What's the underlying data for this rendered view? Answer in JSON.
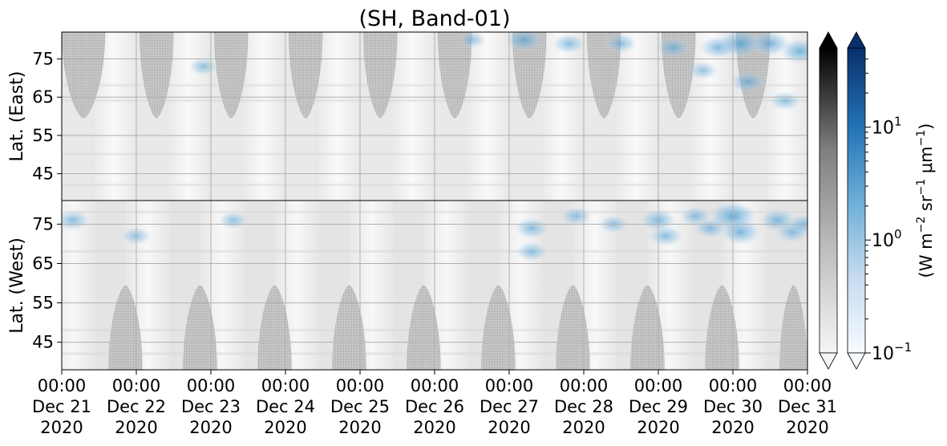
{
  "chart_data": {
    "type": "heatmap",
    "title": "(SH, Band-01)",
    "x": {
      "ticks": [
        {
          "time": "00:00",
          "date": "Dec 21",
          "year": "2020"
        },
        {
          "time": "00:00",
          "date": "Dec 22",
          "year": "2020"
        },
        {
          "time": "00:00",
          "date": "Dec 23",
          "year": "2020"
        },
        {
          "time": "00:00",
          "date": "Dec 24",
          "year": "2020"
        },
        {
          "time": "00:00",
          "date": "Dec 25",
          "year": "2020"
        },
        {
          "time": "00:00",
          "date": "Dec 26",
          "year": "2020"
        },
        {
          "time": "00:00",
          "date": "Dec 27",
          "year": "2020"
        },
        {
          "time": "00:00",
          "date": "Dec 28",
          "year": "2020"
        },
        {
          "time": "00:00",
          "date": "Dec 29",
          "year": "2020"
        },
        {
          "time": "00:00",
          "date": "Dec 30",
          "year": "2020"
        },
        {
          "time": "00:00",
          "date": "Dec 31",
          "year": "2020"
        }
      ],
      "range": [
        "2020-12-21 00:00",
        "2020-12-31 00:00"
      ],
      "grid": true
    },
    "panels": [
      {
        "name": "east",
        "ylabel": "Lat. (East)",
        "ylim": [
          38,
          82
        ],
        "yticks": [
          45,
          55,
          65,
          75
        ],
        "grid": true,
        "gray_patches": [
          {
            "start": "2020-12-21 00:00",
            "end": "2020-12-21 14:00",
            "edge_lat": 59.5
          },
          {
            "start": "2020-12-22 01:00",
            "end": "2020-12-22 12:00",
            "edge_lat": 59.5
          },
          {
            "start": "2020-12-23 01:00",
            "end": "2020-12-23 12:00",
            "edge_lat": 59.5
          },
          {
            "start": "2020-12-24 01:00",
            "end": "2020-12-24 12:00",
            "edge_lat": 59.5
          },
          {
            "start": "2020-12-25 01:00",
            "end": "2020-12-25 12:00",
            "edge_lat": 59.5
          },
          {
            "start": "2020-12-26 01:00",
            "end": "2020-12-26 12:00",
            "edge_lat": 59.5
          },
          {
            "start": "2020-12-27 01:00",
            "end": "2020-12-27 12:00",
            "edge_lat": 59.5
          },
          {
            "start": "2020-12-28 01:00",
            "end": "2020-12-28 12:00",
            "edge_lat": 59.5
          },
          {
            "start": "2020-12-29 01:00",
            "end": "2020-12-29 12:00",
            "edge_lat": 59.5
          },
          {
            "start": "2020-12-30 01:00",
            "end": "2020-12-30 12:00",
            "edge_lat": 59.5
          }
        ]
      },
      {
        "name": "west",
        "ylabel": "Lat. (West)",
        "ylim": [
          38,
          81
        ],
        "yticks": [
          75,
          65,
          55,
          45
        ],
        "grid": true,
        "gray_patches": [
          {
            "start": "2020-12-21 15:00",
            "end": "2020-12-22 02:00",
            "edge_lat": 59.5
          },
          {
            "start": "2020-12-22 15:00",
            "end": "2020-12-23 02:00",
            "edge_lat": 59.5
          },
          {
            "start": "2020-12-23 15:00",
            "end": "2020-12-24 02:00",
            "edge_lat": 59.5
          },
          {
            "start": "2020-12-24 15:00",
            "end": "2020-12-25 02:00",
            "edge_lat": 59.5
          },
          {
            "start": "2020-12-25 15:00",
            "end": "2020-12-26 02:00",
            "edge_lat": 59.5
          },
          {
            "start": "2020-12-26 15:00",
            "end": "2020-12-27 02:00",
            "edge_lat": 59.5
          },
          {
            "start": "2020-12-27 15:00",
            "end": "2020-12-28 02:00",
            "edge_lat": 59.5
          },
          {
            "start": "2020-12-28 15:00",
            "end": "2020-12-29 02:00",
            "edge_lat": 59.5
          },
          {
            "start": "2020-12-29 15:00",
            "end": "2020-12-30 02:00",
            "edge_lat": 59.5
          },
          {
            "start": "2020-12-30 15:00",
            "end": "2020-12-31 00:00",
            "edge_lat": 59.5
          }
        ]
      }
    ],
    "blue_regions": [
      {
        "panel": "east",
        "day": 1.9,
        "lat": 73,
        "value": 0.3
      },
      {
        "panel": "east",
        "day": 5.5,
        "lat": 80,
        "value": 0.25
      },
      {
        "panel": "east",
        "day": 6.2,
        "lat": 80,
        "value": 1.0
      },
      {
        "panel": "east",
        "day": 6.8,
        "lat": 79,
        "value": 0.5
      },
      {
        "panel": "east",
        "day": 7.5,
        "lat": 79,
        "value": 0.4
      },
      {
        "panel": "east",
        "day": 8.2,
        "lat": 78,
        "value": 0.5
      },
      {
        "panel": "east",
        "day": 8.8,
        "lat": 78,
        "value": 0.8
      },
      {
        "panel": "east",
        "day": 8.6,
        "lat": 72,
        "value": 0.3
      },
      {
        "panel": "east",
        "day": 9.1,
        "lat": 79,
        "value": 2.5
      },
      {
        "panel": "east",
        "day": 9.5,
        "lat": 79,
        "value": 1.2
      },
      {
        "panel": "east",
        "day": 9.2,
        "lat": 69,
        "value": 0.6
      },
      {
        "panel": "east",
        "day": 9.9,
        "lat": 77,
        "value": 1.5
      },
      {
        "panel": "east",
        "day": 9.7,
        "lat": 64,
        "value": 0.4
      },
      {
        "panel": "west",
        "day": 0.15,
        "lat": 76,
        "value": 0.6
      },
      {
        "panel": "west",
        "day": 1.0,
        "lat": 72,
        "value": 0.3
      },
      {
        "panel": "west",
        "day": 2.3,
        "lat": 76,
        "value": 0.3
      },
      {
        "panel": "west",
        "day": 6.3,
        "lat": 74,
        "value": 0.6
      },
      {
        "panel": "west",
        "day": 6.3,
        "lat": 68,
        "value": 0.4
      },
      {
        "panel": "west",
        "day": 6.9,
        "lat": 77,
        "value": 0.4
      },
      {
        "panel": "west",
        "day": 7.4,
        "lat": 75,
        "value": 0.3
      },
      {
        "panel": "west",
        "day": 8.0,
        "lat": 76,
        "value": 0.8
      },
      {
        "panel": "west",
        "day": 8.1,
        "lat": 72,
        "value": 0.6
      },
      {
        "panel": "west",
        "day": 8.5,
        "lat": 77,
        "value": 0.4
      },
      {
        "panel": "west",
        "day": 8.7,
        "lat": 74,
        "value": 0.5
      },
      {
        "panel": "west",
        "day": 9.0,
        "lat": 77,
        "value": 4.0
      },
      {
        "panel": "west",
        "day": 9.1,
        "lat": 73,
        "value": 1.5
      },
      {
        "panel": "west",
        "day": 9.6,
        "lat": 76,
        "value": 0.8
      },
      {
        "panel": "west",
        "day": 9.8,
        "lat": 73,
        "value": 0.6
      },
      {
        "panel": "west",
        "day": 9.95,
        "lat": 75,
        "value": 0.5
      }
    ],
    "colorbars": [
      {
        "name": "gray",
        "colors": [
          "#f5f5f5",
          "#bfbfbf",
          "#7f7f7f",
          "#000000"
        ],
        "extend": "both"
      },
      {
        "name": "blue",
        "colors": [
          "#f7fbff",
          "#c6dbef",
          "#6baed6",
          "#2171b5",
          "#08306b"
        ],
        "extend": "both",
        "scale": "log",
        "range": [
          0.1,
          50
        ],
        "ticks": [
          {
            "base": "10",
            "exp": "−1",
            "value": 0.1
          },
          {
            "base": "10",
            "exp": "0",
            "value": 1
          },
          {
            "base": "10",
            "exp": "1",
            "value": 10
          }
        ],
        "label": {
          "pre": "(W m",
          "e1": "−2",
          "mid1": " sr",
          "e2": "−1",
          "mid2": " μm",
          "e3": "−1",
          "post": ")"
        }
      }
    ]
  }
}
